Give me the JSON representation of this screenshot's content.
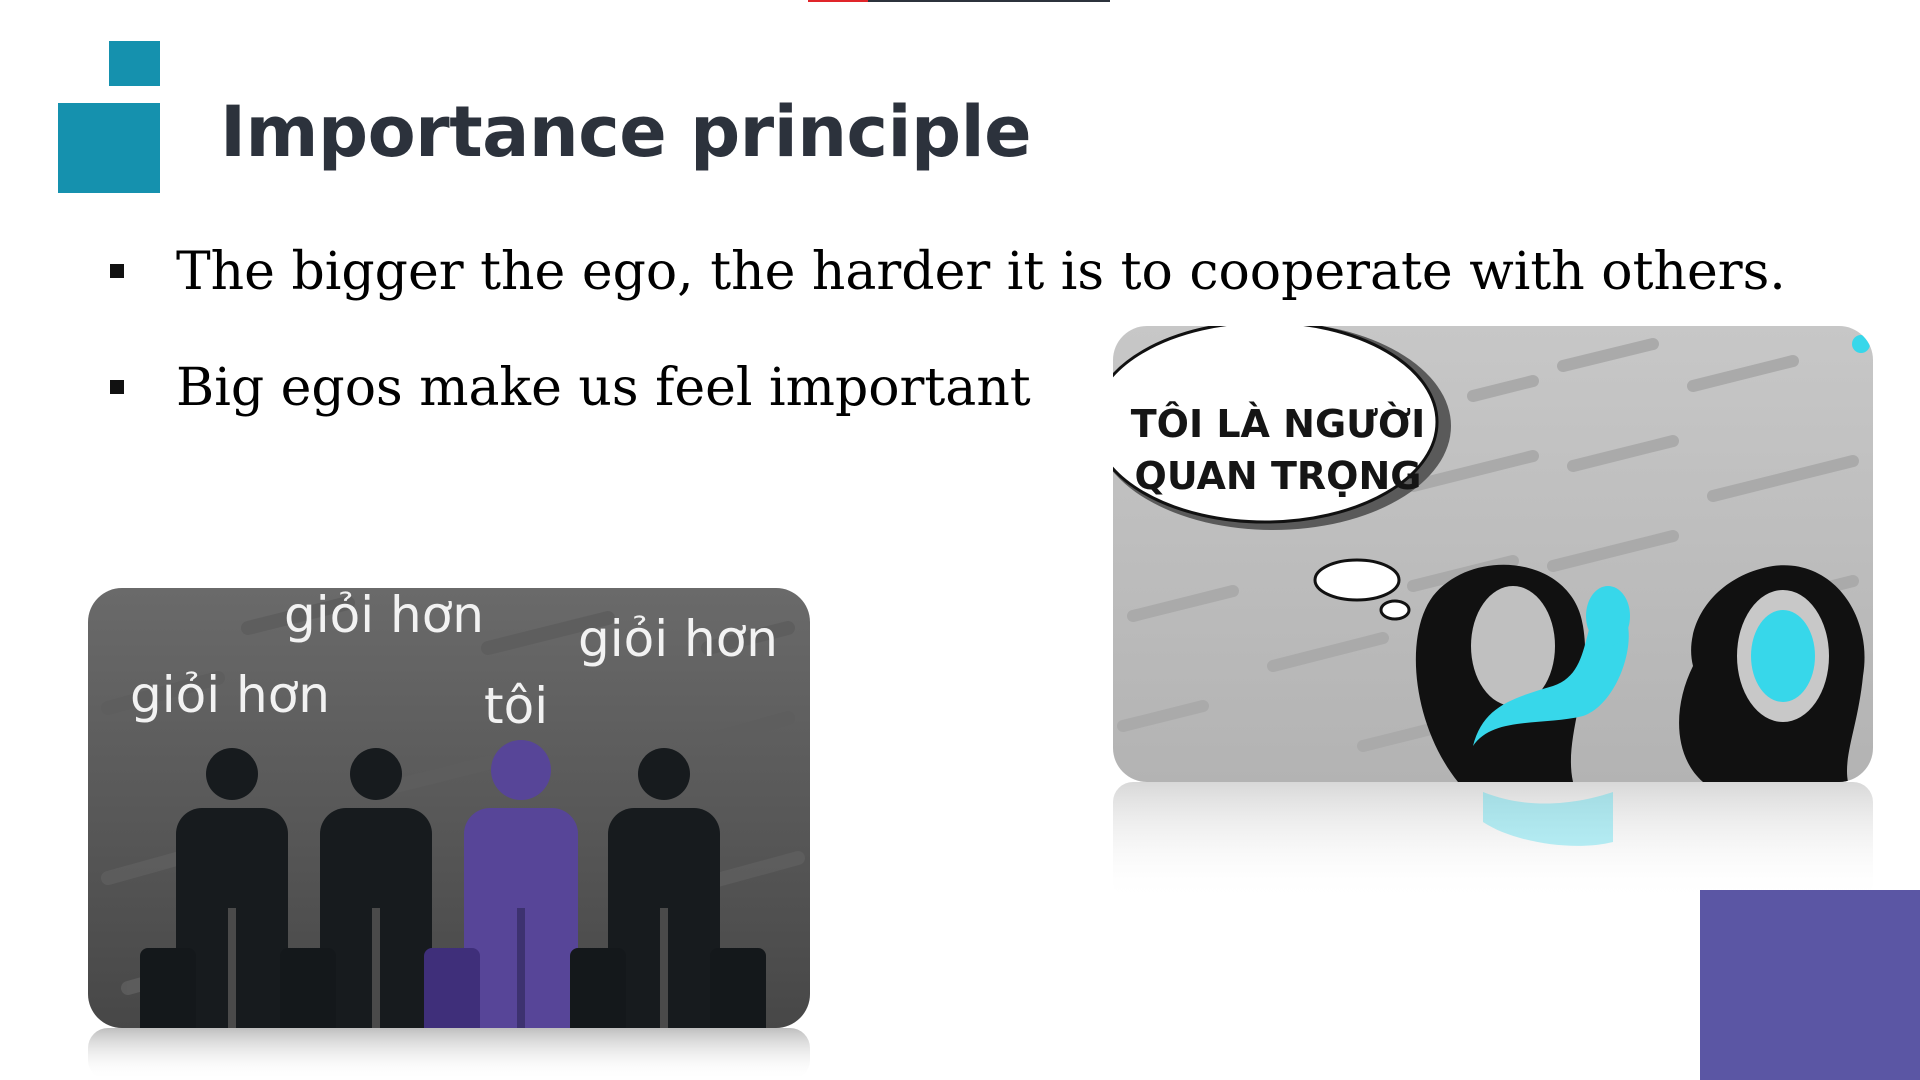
{
  "colors": {
    "teal": "#1591ae",
    "title": "#2c323c",
    "purple": "#5b56a4",
    "figure_dark": "#171b1e",
    "figure_purple": "#574598",
    "cyan": "#37d7ea",
    "red": "#e0252a"
  },
  "slide": {
    "title": "Importance principle",
    "bullets": [
      {
        "text": "The bigger the ego, the harder it is to cooperate with others.",
        "marker_icon": "square-bullet-icon"
      },
      {
        "text": "Big egos make us feel important",
        "marker_icon": "square-bullet-icon"
      }
    ]
  },
  "image_left": {
    "labels": [
      "giỏi hơn",
      "giỏi hơn",
      "tôi",
      "giỏi hơn"
    ]
  },
  "image_right": {
    "bubble_line1": "TÔI LÀ NGƯỜI",
    "bubble_line2": "QUAN TRỌNG"
  }
}
